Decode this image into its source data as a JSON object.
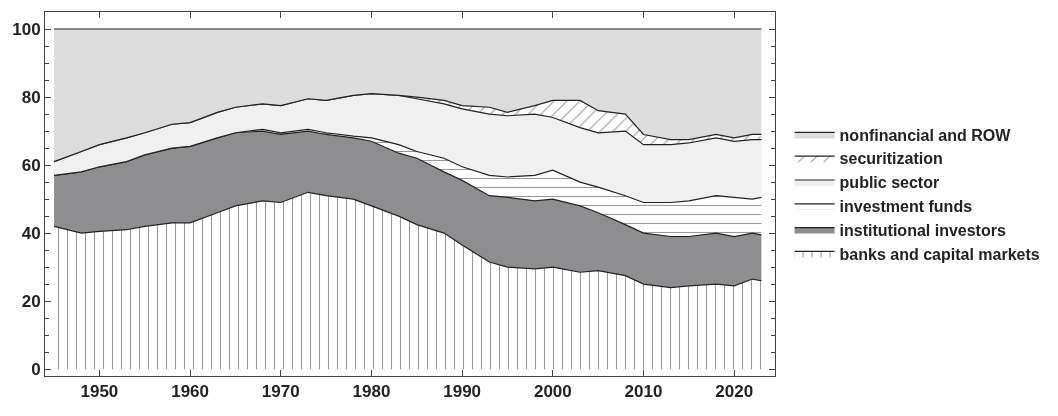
{
  "chart_data": {
    "type": "area",
    "stacked": true,
    "legend": "right",
    "xlim": [
      1944,
      2024.5
    ],
    "ylim": [
      -2,
      105
    ],
    "xticks": [
      1950,
      1960,
      1970,
      1980,
      1990,
      2000,
      2010,
      2020
    ],
    "yticks": [
      0,
      20,
      40,
      60,
      80,
      100
    ],
    "x": [
      1945,
      1948,
      1950,
      1953,
      1955,
      1958,
      1960,
      1963,
      1965,
      1968,
      1970,
      1973,
      1975,
      1978,
      1980,
      1983,
      1985,
      1988,
      1990,
      1993,
      1995,
      1998,
      2000,
      2003,
      2005,
      2008,
      2010,
      2013,
      2015,
      2018,
      2020,
      2022,
      2023
    ],
    "series": [
      {
        "name": "banks and capital markets",
        "color": "#ffffff",
        "values": [
          42,
          40,
          40.5,
          41,
          42,
          43,
          43,
          46,
          48,
          49.5,
          49,
          52,
          51,
          50,
          48,
          45,
          42.5,
          40,
          36.5,
          31.5,
          30,
          29.5,
          30,
          28.5,
          29,
          27.5,
          25,
          24,
          24.5,
          25,
          24.5,
          26.5,
          26
        ]
      },
      {
        "name": "institutional investors",
        "color": "#8e8e91",
        "values": [
          15,
          18,
          19,
          20,
          21,
          22,
          22.5,
          22,
          21.5,
          20.5,
          20,
          18,
          18,
          18,
          19,
          18.5,
          19.5,
          18,
          19,
          19.5,
          20.5,
          20,
          20,
          19.5,
          17,
          15,
          15,
          15,
          14.5,
          15,
          14.5,
          13.5,
          13.5
        ]
      },
      {
        "name": "investment funds",
        "color": "#ffffff",
        "values": [
          0,
          0,
          0,
          0,
          0,
          0,
          0,
          0,
          0,
          0.5,
          0.5,
          0.5,
          0.5,
          0.5,
          1,
          2.5,
          2,
          4,
          4,
          6,
          6,
          7.5,
          8.5,
          7,
          7.5,
          8.5,
          9,
          10,
          10.5,
          11,
          11.5,
          10,
          11
        ]
      },
      {
        "name": "public sector",
        "color": "#f0f0f0",
        "values": [
          4,
          6,
          6.5,
          7,
          6.5,
          7,
          7,
          7.5,
          7.5,
          7.5,
          8,
          9,
          9.5,
          12,
          13,
          14.5,
          15.5,
          16,
          17,
          18,
          18,
          18,
          15.5,
          16,
          16,
          19,
          17,
          17,
          17,
          17,
          16.5,
          17.5,
          17
        ]
      },
      {
        "name": "securitization",
        "color": "#ffffff",
        "values": [
          0,
          0,
          0,
          0,
          0,
          0,
          0,
          0,
          0,
          0,
          0,
          0,
          0,
          0,
          0,
          0,
          0.5,
          1,
          1,
          2,
          1,
          2.5,
          5,
          8,
          6.5,
          5,
          3,
          1.5,
          1,
          1,
          1,
          1.5,
          1.5
        ]
      },
      {
        "name": "nonfinancial and ROW",
        "color": "#dcdcdd",
        "values": [
          39,
          36,
          34,
          32,
          30.5,
          28,
          27.5,
          24.5,
          23,
          22,
          22.5,
          20.5,
          21,
          19.5,
          19,
          19.5,
          20,
          21,
          22.5,
          23,
          24.5,
          22.5,
          21,
          21,
          24,
          25,
          31,
          32.5,
          32.5,
          31,
          32,
          31,
          31
        ]
      }
    ]
  }
}
